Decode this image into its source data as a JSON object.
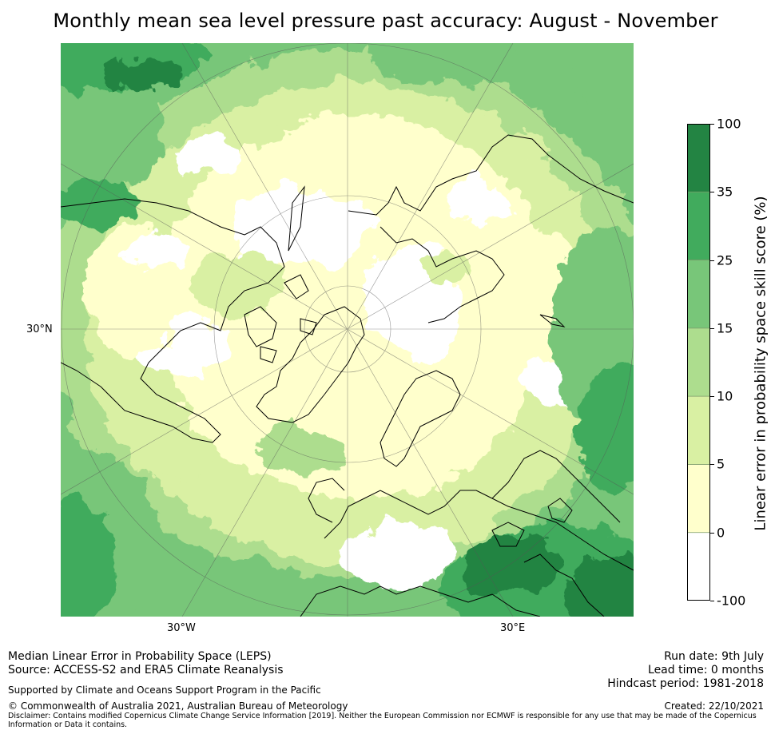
{
  "title": "Monthly mean sea level pressure past accuracy: August - November",
  "map": {
    "projection": "north polar stereographic",
    "lat_label": "30°N",
    "lon_labels": [
      "30°W",
      "30°E"
    ],
    "colors": [
      "#ffffff",
      "#ffffcc",
      "#d9f0a3",
      "#addd8e",
      "#78c679",
      "#41ab5d",
      "#238443"
    ]
  },
  "colorbar": {
    "label": "Linear error in probability space skill score (%)",
    "ticks": [
      "100",
      "35",
      "25",
      "15",
      "10",
      "5",
      "0",
      "-100"
    ],
    "colors": [
      "#238443",
      "#41ab5d",
      "#78c679",
      "#addd8e",
      "#d9f0a3",
      "#ffffcc",
      "#ffffff"
    ]
  },
  "footer": {
    "left_line1": "Median Linear Error in Probability Space (LEPS)",
    "left_line2": "Source: ACCESS-S2 and ERA5 Climate Reanalysis",
    "support": "Supported by Climate and Oceans Support Program in the Pacific",
    "copyright": "© Commonwealth of Australia 2021, Australian Bureau of Meteorology",
    "disclaimer_line1": "Disclaimer: Contains modified Copernicus Climate Change Service Information [2019]. Neither the European Commission nor ECMWF is responsible for any use that may be made of the Copernicus",
    "disclaimer_line2": "Information or Data it contains.",
    "run_date": "Run date: 9th July",
    "lead_time": "Lead time: 0 months",
    "hindcast": "Hindcast period: 1981-2018",
    "created": "Created: 22/10/2021"
  }
}
